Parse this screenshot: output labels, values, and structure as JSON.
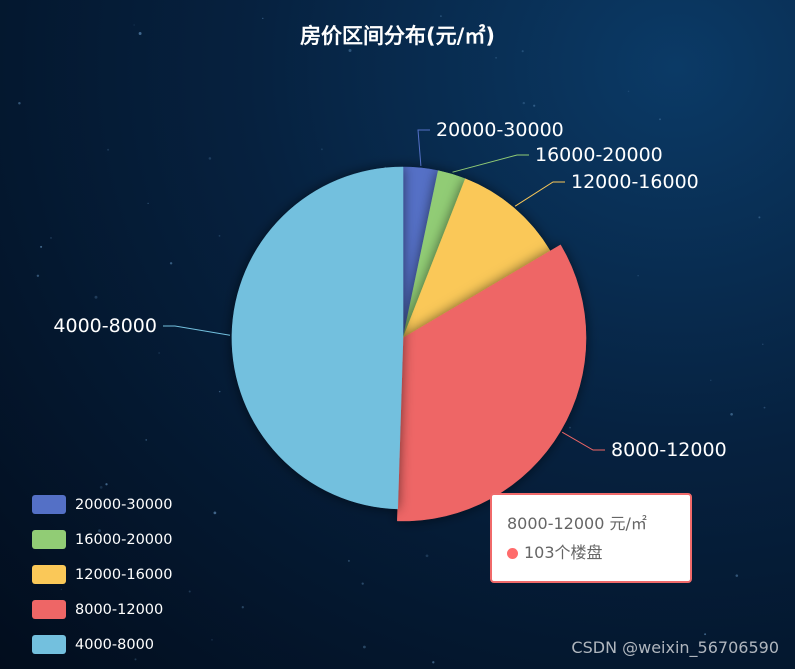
{
  "title": "房价区间分布(元/㎡)",
  "chart_data": {
    "type": "pie",
    "title": "房价区间分布(元/㎡)",
    "slices": [
      {
        "name": "20000-30000",
        "value": 10,
        "color": "#5470c6"
      },
      {
        "name": "16000-20000",
        "value": 8,
        "color": "#91cc75"
      },
      {
        "name": "12000-16000",
        "value": 32,
        "color": "#fac858"
      },
      {
        "name": "8000-12000",
        "value": 103,
        "color": "#ee6666"
      },
      {
        "name": "4000-8000",
        "value": 150,
        "color": "#73c0de"
      }
    ],
    "legend_position": "bottom-left"
  },
  "tooltip": {
    "title": "8000-12000 元/㎡",
    "value_text": "103个楼盘"
  },
  "watermark": "CSDN @weixin_56706590"
}
